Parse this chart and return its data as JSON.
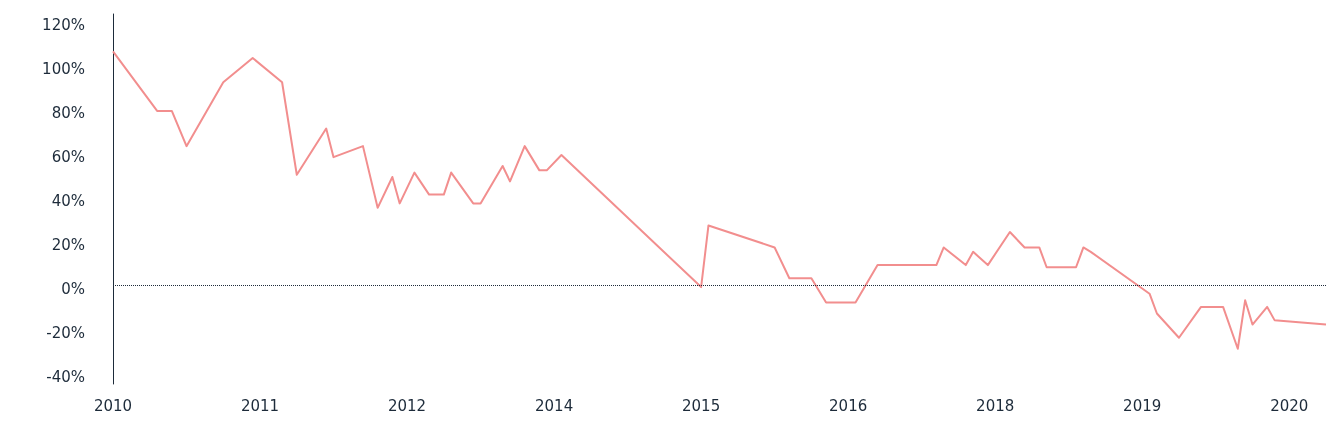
{
  "chart_data": {
    "type": "line",
    "categories": [
      "2010",
      null,
      null,
      null,
      null,
      null,
      null,
      null,
      null,
      null,
      null,
      null,
      null,
      null,
      null,
      null,
      null,
      null,
      null,
      null,
      "2011",
      null,
      null,
      null,
      null,
      null,
      null,
      null,
      null,
      null,
      null,
      null,
      null,
      null,
      null,
      null,
      null,
      null,
      null,
      null,
      "2012",
      null,
      null,
      null,
      null,
      null,
      null,
      null,
      null,
      null,
      null,
      null,
      null,
      null,
      null,
      null,
      null,
      null,
      null,
      null,
      "2014",
      null,
      null,
      null,
      null,
      null,
      null,
      null,
      null,
      null,
      null,
      null,
      null,
      null,
      null,
      null,
      null,
      null,
      null,
      null,
      "2015",
      null,
      null,
      null,
      null,
      null,
      null,
      null,
      null,
      null,
      null,
      null,
      null,
      null,
      null,
      null,
      null,
      null,
      null,
      null,
      "2016",
      null,
      null,
      null,
      null,
      null,
      null,
      null,
      null,
      null,
      null,
      null,
      null,
      null,
      null,
      null,
      null,
      null,
      null,
      null,
      "2018",
      null,
      null,
      null,
      null,
      null,
      null,
      null,
      null,
      null,
      null,
      null,
      null,
      null,
      null,
      null,
      null,
      null,
      null,
      null,
      "2019",
      null,
      null,
      null,
      null,
      null,
      null,
      null,
      null,
      null,
      null,
      null,
      null,
      null,
      null,
      null,
      null,
      null,
      null,
      null,
      "2020",
      null,
      null,
      null,
      null,
      null
    ],
    "series": [
      {
        "color": "#f28e8e",
        "values": [
          108,
          null,
          null,
          null,
          null,
          null,
          81,
          null,
          81,
          null,
          65,
          null,
          null,
          null,
          null,
          94,
          null,
          null,
          null,
          105,
          null,
          null,
          null,
          94,
          null,
          52,
          null,
          null,
          null,
          73,
          60,
          null,
          null,
          null,
          65,
          null,
          37,
          null,
          51,
          39,
          null,
          53,
          null,
          43,
          null,
          43,
          53,
          null,
          null,
          39,
          39,
          null,
          null,
          56,
          49,
          null,
          65,
          null,
          54,
          54,
          null,
          61,
          null,
          null,
          null,
          null,
          null,
          null,
          null,
          null,
          null,
          null,
          null,
          null,
          null,
          null,
          null,
          null,
          null,
          null,
          1,
          29,
          null,
          null,
          null,
          null,
          null,
          null,
          null,
          null,
          19,
          null,
          5,
          null,
          null,
          5,
          null,
          -6,
          null,
          null,
          null,
          -6,
          null,
          null,
          11,
          null,
          null,
          null,
          null,
          null,
          null,
          null,
          11,
          19,
          null,
          null,
          11,
          17,
          null,
          11,
          null,
          null,
          26,
          null,
          19,
          null,
          19,
          10,
          null,
          null,
          null,
          10,
          19,
          17,
          null,
          null,
          null,
          null,
          null,
          null,
          null,
          -2,
          -11,
          null,
          null,
          -22,
          null,
          null,
          -8,
          null,
          null,
          -8,
          null,
          -27,
          -5,
          -16,
          null,
          -8,
          -14,
          null,
          null,
          null,
          null,
          null,
          null,
          -16
        ]
      }
    ],
    "ylim": [
      -43,
      125
    ],
    "yticks": [
      {
        "value": -40,
        "label": "-40%"
      },
      {
        "value": -20,
        "label": "-20%"
      },
      {
        "value": 0,
        "label": "0%"
      },
      {
        "value": 20,
        "label": "20%"
      },
      {
        "value": 40,
        "label": "40%"
      },
      {
        "value": 60,
        "label": "60%"
      },
      {
        "value": 80,
        "label": "80%"
      },
      {
        "value": 100,
        "label": "100%"
      },
      {
        "value": 120,
        "label": "120%"
      }
    ],
    "ref_lines": [
      {
        "axis": "y",
        "value": 2,
        "color": "#1d2b3a",
        "line_style": "dotted"
      }
    ],
    "grid": false,
    "marker": "none",
    "line_style": "solid"
  }
}
